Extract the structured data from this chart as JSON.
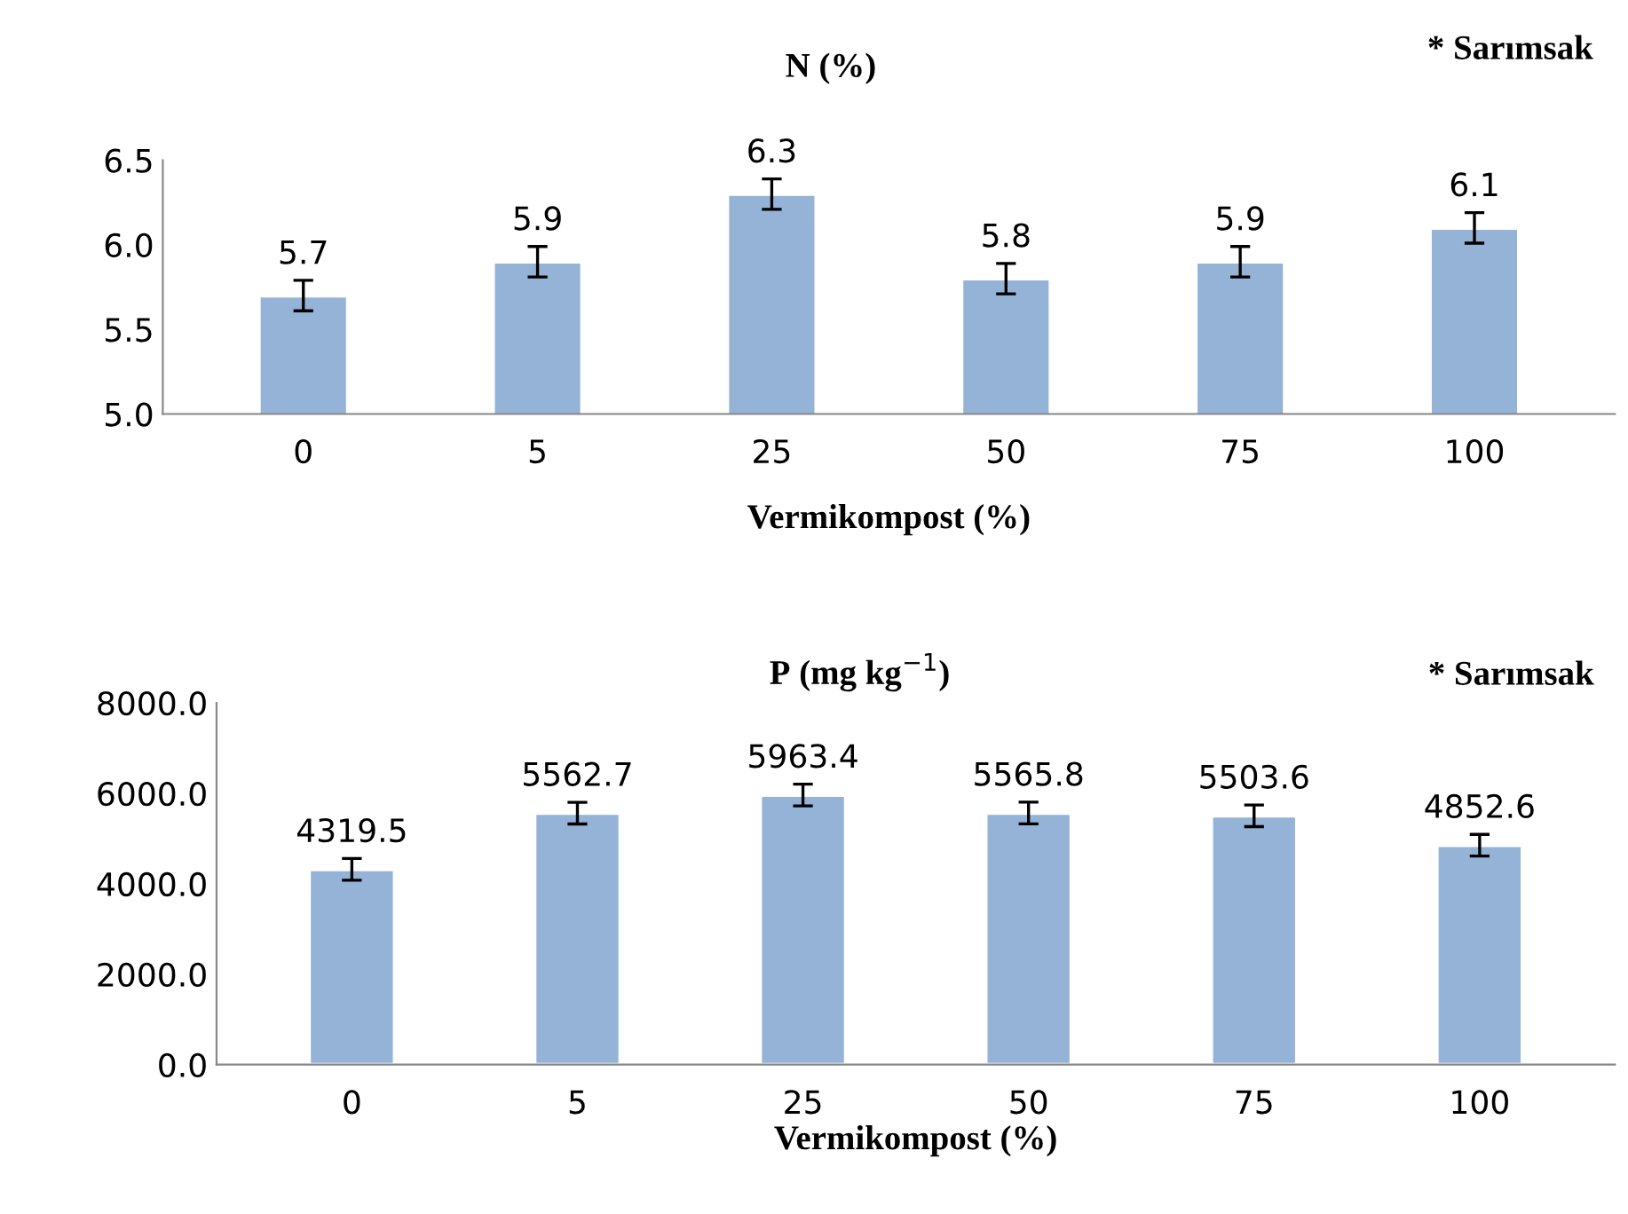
{
  "chart_data": [
    {
      "type": "bar",
      "title": "N (%)",
      "xlabel": "Vermikompost (%)",
      "annotations": [
        "* Sarımsak"
      ],
      "categories": [
        "0",
        "5",
        "25",
        "50",
        "75",
        "100"
      ],
      "values": [
        5.7,
        5.9,
        6.3,
        5.8,
        5.9,
        6.1
      ],
      "color": "#95b3d7",
      "errors": [
        0.09,
        0.09,
        0.09,
        0.09,
        0.09,
        0.09
      ],
      "ylim": [
        5.0,
        6.5
      ],
      "yticks": [
        {
          "value": 5.0,
          "label": "5.0"
        },
        {
          "value": 5.5,
          "label": "5.5"
        },
        {
          "value": 6.0,
          "label": "6.0"
        },
        {
          "value": 6.5,
          "label": "6.5"
        }
      ],
      "data_labels": true,
      "grid": false,
      "legend": false
    },
    {
      "type": "bar",
      "title": "P (mg kg$^{−1}$)",
      "xlabel": "Vermikompost (%)",
      "annotations": [
        "* Sarımsak"
      ],
      "categories": [
        "0",
        "5",
        "25",
        "50",
        "75",
        "100"
      ],
      "values": [
        4319.5,
        5562.7,
        5963.4,
        5565.8,
        5503.6,
        4852.6
      ],
      "color": "#95b3d7",
      "errors": [
        240,
        240,
        240,
        240,
        240,
        240
      ],
      "ylim": [
        0,
        8000
      ],
      "yticks": [
        {
          "value": 0,
          "label": "0.0"
        },
        {
          "value": 2000,
          "label": "2000.0"
        },
        {
          "value": 4000,
          "label": "4000.0"
        },
        {
          "value": 6000,
          "label": "6000.0"
        },
        {
          "value": 8000,
          "label": "8000.0"
        }
      ],
      "data_labels": true,
      "grid": false,
      "legend": false
    }
  ]
}
